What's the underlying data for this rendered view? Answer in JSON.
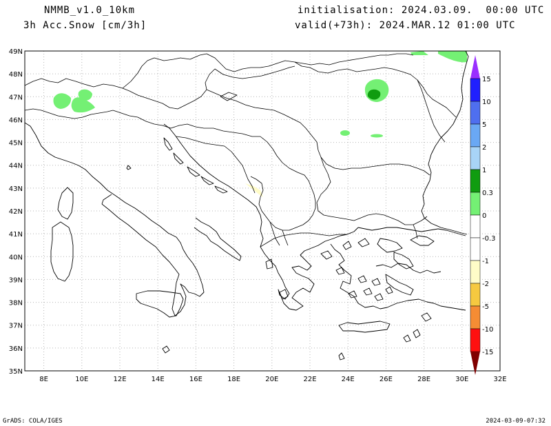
{
  "header": {
    "model": "NMMB_v1.0_10km",
    "variable": "3h Acc.Snow [cm/3h]",
    "init": "initialisation: 2024.03.09.  00:00 UTC",
    "valid": "valid(+73h): 2024.MAR.12 01:00 UTC"
  },
  "footer": {
    "left": "GrADS: COLA/IGES",
    "right": "2024-03-09-07:32"
  },
  "map": {
    "lon_range": [
      7,
      32
    ],
    "lat_range": [
      35,
      49
    ],
    "lon_labels": [
      "8E",
      "10E",
      "12E",
      "14E",
      "16E",
      "18E",
      "20E",
      "22E",
      "24E",
      "26E",
      "28E",
      "30E",
      "32E"
    ],
    "lat_labels": [
      "49N",
      "48N",
      "47N",
      "46N",
      "45N",
      "44N",
      "43N",
      "42N",
      "41N",
      "40N",
      "39N",
      "38N",
      "37N",
      "36N",
      "35N"
    ]
  },
  "colorbar": {
    "levels": [
      {
        "label": "15",
        "color": "#2020ff"
      },
      {
        "label": "10",
        "color": "#4f6fef"
      },
      {
        "label": "5",
        "color": "#6aa8f4"
      },
      {
        "label": "2",
        "color": "#a8d4f7"
      },
      {
        "label": "1",
        "color": "#109c10"
      },
      {
        "label": "0.3",
        "color": "#74f074"
      },
      {
        "label": "0",
        "color": "#ffffff"
      },
      {
        "label": "-0.3",
        "color": "#ffffff"
      },
      {
        "label": "-1",
        "color": "#fffcc8"
      },
      {
        "label": "-2",
        "color": "#f6c940"
      },
      {
        "label": "-5",
        "color": "#f58c34"
      },
      {
        "label": "-10",
        "color": "#ff1010"
      },
      {
        "label": "-15",
        "color": "#c00000"
      }
    ],
    "top_arrow_color": "#9a30ff",
    "bottom_arrow_color": "#800000"
  }
}
